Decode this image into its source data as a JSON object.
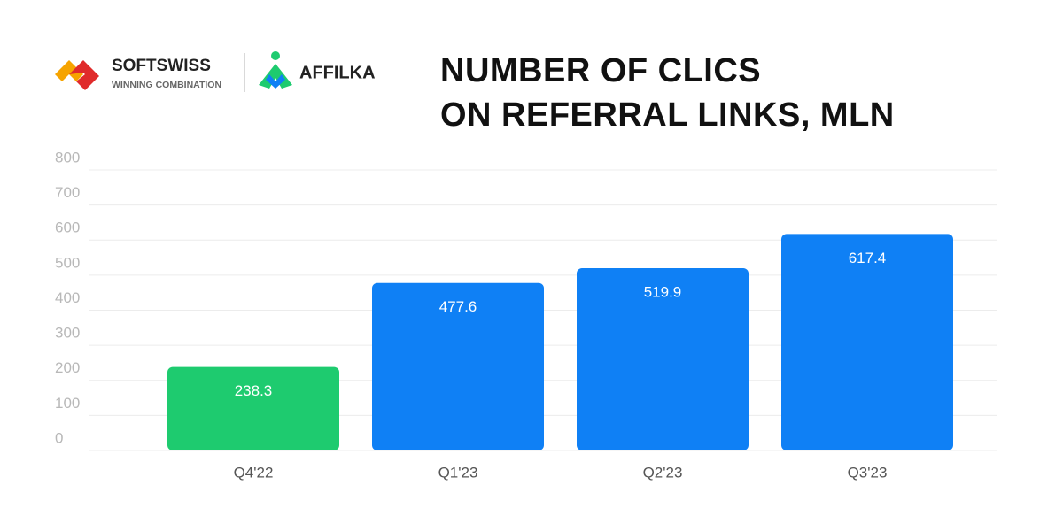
{
  "header": {
    "logos": [
      {
        "name": "SOFTSWISS",
        "tagline": "WINNING COMBINATION"
      },
      {
        "name": "AFFILKA"
      }
    ]
  },
  "chart_data": {
    "type": "bar",
    "title": [
      "NUMBER OF CLICS",
      "ON REFERRAL LINKS, MLN"
    ],
    "categories": [
      "Q4'22",
      "Q1'23",
      "Q2'23",
      "Q3'23"
    ],
    "values": [
      238.3,
      477.6,
      519.9,
      617.4
    ],
    "colors": [
      "#1ecb6f",
      "#0f80f5",
      "#0f80f5",
      "#0f80f5"
    ],
    "ylim": [
      0,
      800
    ],
    "yticks": [
      0,
      100,
      200,
      300,
      400,
      500,
      600,
      700,
      800
    ],
    "grid": true
  }
}
